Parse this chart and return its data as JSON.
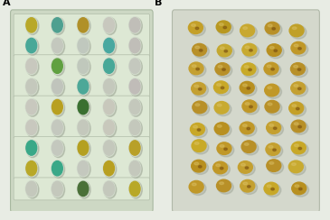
{
  "fig_width": 3.65,
  "fig_height": 2.44,
  "dpi": 100,
  "label_A": "A",
  "label_B": "B",
  "label_fontsize": 8,
  "label_fontweight": "bold",
  "fig_bg": "#e8ece4",
  "panel_A": {
    "tray_bg": "#cdd8c4",
    "tray_border": "#a8b8a0",
    "strip_bg": "#dde8d4",
    "strip_border": "#b0bca8",
    "well_rim": "#d4dece",
    "well_rows": 9,
    "well_cols": 5,
    "well_colors": [
      [
        "#b8a828",
        "#4ea090",
        "#b09028",
        "#c8c8be",
        "#c0beb8"
      ],
      [
        "#48a898",
        "#c4c8be",
        "#c0c8be",
        "#48a8a0",
        "#c0beb8"
      ],
      [
        "#c8c8be",
        "#60a040",
        "#c0c8bc",
        "#48a898",
        "#c4c8be"
      ],
      [
        "#c4c8bc",
        "#c0c4bc",
        "#4ca898",
        "#c4c8bc",
        "#c0bcb8"
      ],
      [
        "#c8c8be",
        "#b8a020",
        "#3a7030",
        "#c8c8bc",
        "#c4c8bc"
      ],
      [
        "#c8c8be",
        "#c4c8be",
        "#c4c8bc",
        "#c8c8bc",
        "#c4c8bc"
      ],
      [
        "#3aa888",
        "#c4c8be",
        "#b4a020",
        "#c4c8bc",
        "#b8a028"
      ],
      [
        "#b8a828",
        "#3aa888",
        "#c4c8be",
        "#b8a020",
        "#c4c8bc"
      ],
      [
        "#c4c8bc",
        "#c4c8bc",
        "#4a7038",
        "#c4c8bc",
        "#b8a828"
      ]
    ]
  },
  "panel_B": {
    "bg": "#d4d8cc",
    "seed_body": "#c0a030",
    "seed_dark": "#a07820",
    "seed_rows": 9,
    "seed_cols": 5
  }
}
